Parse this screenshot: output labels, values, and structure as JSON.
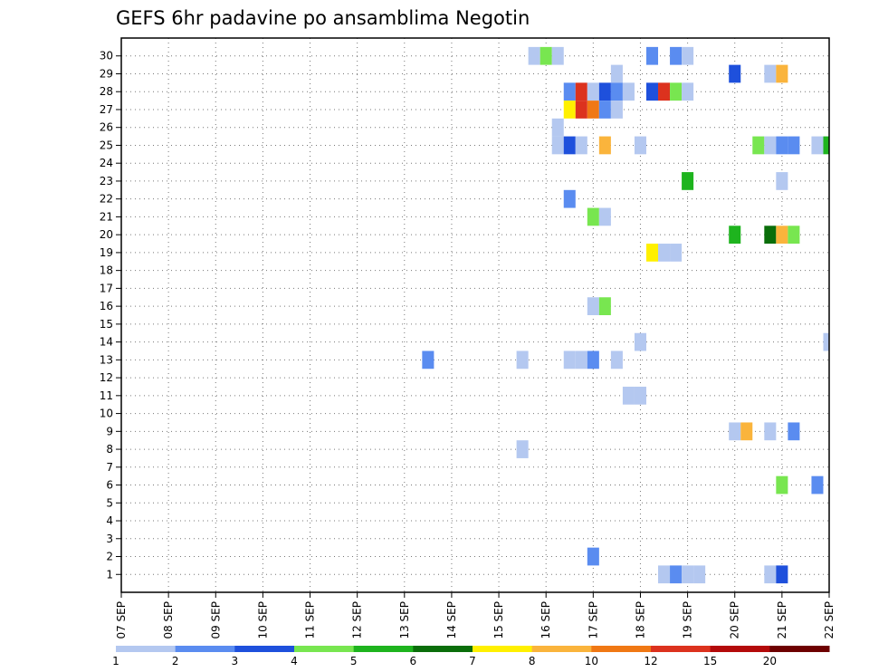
{
  "chart_data": {
    "type": "heatmap",
    "title": "GEFS 6hr padavine po ansamblima Negotin",
    "xlabel": "",
    "ylabel": "",
    "x_tick_labels": [
      "07 SEP",
      "08 SEP",
      "09 SEP",
      "10 SEP",
      "11 SEP",
      "12 SEP",
      "13 SEP",
      "14 SEP",
      "15 SEP",
      "16 SEP",
      "17 SEP",
      "18 SEP",
      "19 SEP",
      "20 SEP",
      "21 SEP",
      "22 SEP"
    ],
    "x_range_days": [
      0,
      15
    ],
    "y_tick_labels": [
      "1",
      "2",
      "3",
      "4",
      "5",
      "6",
      "7",
      "8",
      "9",
      "10",
      "11",
      "12",
      "13",
      "14",
      "15",
      "16",
      "17",
      "18",
      "19",
      "20",
      "21",
      "22",
      "23",
      "24",
      "25",
      "26",
      "27",
      "28",
      "29",
      "30"
    ],
    "y_range": [
      0,
      31
    ],
    "grid": true,
    "colorbar": {
      "labels": [
        "1",
        "2",
        "3",
        "4",
        "5",
        "6",
        "7",
        "8",
        "10",
        "12",
        "15",
        "20"
      ],
      "colors": [
        "#b4c8f0",
        "#5a8cf0",
        "#1e50dc",
        "#78e650",
        "#1eb41e",
        "#0a6e0a",
        "#fff000",
        "#fab43c",
        "#f07814",
        "#dc321e",
        "#b40a0a",
        "#6e0000"
      ]
    },
    "cells": [
      {
        "m": 30,
        "t": "2018-09-15 18",
        "c": 1
      },
      {
        "m": 30,
        "t": "2018-09-16 00",
        "c": 4
      },
      {
        "m": 30,
        "t": "2018-09-16 06",
        "c": 1
      },
      {
        "m": 30,
        "t": "2018-09-18 06",
        "c": 2
      },
      {
        "m": 30,
        "t": "2018-09-18 18",
        "c": 2
      },
      {
        "m": 30,
        "t": "2018-09-19 00",
        "c": 1
      },
      {
        "m": 29,
        "t": "2018-09-17 12",
        "c": 1
      },
      {
        "m": 29,
        "t": "2018-09-20 00",
        "c": 3
      },
      {
        "m": 29,
        "t": "2018-09-20 18",
        "c": 1
      },
      {
        "m": 29,
        "t": "2018-09-21 00",
        "c": 8
      },
      {
        "m": 28,
        "t": "2018-09-16 12",
        "c": 2
      },
      {
        "m": 28,
        "t": "2018-09-16 18",
        "c": 10
      },
      {
        "m": 28,
        "t": "2018-09-17 00",
        "c": 1
      },
      {
        "m": 28,
        "t": "2018-09-17 06",
        "c": 3
      },
      {
        "m": 28,
        "t": "2018-09-17 12",
        "c": 2
      },
      {
        "m": 28,
        "t": "2018-09-17 18",
        "c": 1
      },
      {
        "m": 28,
        "t": "2018-09-18 06",
        "c": 3
      },
      {
        "m": 28,
        "t": "2018-09-18 12",
        "c": 10
      },
      {
        "m": 28,
        "t": "2018-09-18 18",
        "c": 4
      },
      {
        "m": 28,
        "t": "2018-09-19 00",
        "c": 1
      },
      {
        "m": 27,
        "t": "2018-09-16 12",
        "c": 7
      },
      {
        "m": 27,
        "t": "2018-09-16 18",
        "c": 10
      },
      {
        "m": 27,
        "t": "2018-09-17 00",
        "c": 9
      },
      {
        "m": 27,
        "t": "2018-09-17 06",
        "c": 2
      },
      {
        "m": 27,
        "t": "2018-09-17 12",
        "c": 1
      },
      {
        "m": 26,
        "t": "2018-09-16 06",
        "c": 1
      },
      {
        "m": 25,
        "t": "2018-09-16 06",
        "c": 1
      },
      {
        "m": 25,
        "t": "2018-09-16 12",
        "c": 3
      },
      {
        "m": 25,
        "t": "2018-09-16 18",
        "c": 1
      },
      {
        "m": 25,
        "t": "2018-09-17 06",
        "c": 8
      },
      {
        "m": 25,
        "t": "2018-09-18 00",
        "c": 1
      },
      {
        "m": 25,
        "t": "2018-09-20 12",
        "c": 4
      },
      {
        "m": 25,
        "t": "2018-09-20 18",
        "c": 1
      },
      {
        "m": 25,
        "t": "2018-09-21 00",
        "c": 2
      },
      {
        "m": 25,
        "t": "2018-09-21 06",
        "c": 2
      },
      {
        "m": 25,
        "t": "2018-09-21 18",
        "c": 1
      },
      {
        "m": 25,
        "t": "2018-09-22 00",
        "c": 5
      },
      {
        "m": 23,
        "t": "2018-09-19 00",
        "c": 5
      },
      {
        "m": 23,
        "t": "2018-09-21 00",
        "c": 1
      },
      {
        "m": 22,
        "t": "2018-09-16 12",
        "c": 2
      },
      {
        "m": 21,
        "t": "2018-09-17 00",
        "c": 4
      },
      {
        "m": 21,
        "t": "2018-09-17 06",
        "c": 1
      },
      {
        "m": 20,
        "t": "2018-09-20 00",
        "c": 5
      },
      {
        "m": 20,
        "t": "2018-09-20 18",
        "c": 6
      },
      {
        "m": 20,
        "t": "2018-09-21 00",
        "c": 8
      },
      {
        "m": 20,
        "t": "2018-09-21 06",
        "c": 4
      },
      {
        "m": 19,
        "t": "2018-09-18 06",
        "c": 7
      },
      {
        "m": 19,
        "t": "2018-09-18 12",
        "c": 1
      },
      {
        "m": 19,
        "t": "2018-09-18 18",
        "c": 1
      },
      {
        "m": 16,
        "t": "2018-09-17 00",
        "c": 1
      },
      {
        "m": 16,
        "t": "2018-09-17 06",
        "c": 4
      },
      {
        "m": 14,
        "t": "2018-09-18 00",
        "c": 1
      },
      {
        "m": 14,
        "t": "2018-09-22 00",
        "c": 1
      },
      {
        "m": 13,
        "t": "2018-09-13 12",
        "c": 2
      },
      {
        "m": 13,
        "t": "2018-09-15 12",
        "c": 1
      },
      {
        "m": 13,
        "t": "2018-09-16 12",
        "c": 1
      },
      {
        "m": 13,
        "t": "2018-09-16 18",
        "c": 1
      },
      {
        "m": 13,
        "t": "2018-09-17 00",
        "c": 2
      },
      {
        "m": 13,
        "t": "2018-09-17 12",
        "c": 1
      },
      {
        "m": 11,
        "t": "2018-09-17 18",
        "c": 1
      },
      {
        "m": 11,
        "t": "2018-09-18 00",
        "c": 1
      },
      {
        "m": 9,
        "t": "2018-09-20 00",
        "c": 1
      },
      {
        "m": 9,
        "t": "2018-09-20 06",
        "c": 8
      },
      {
        "m": 9,
        "t": "2018-09-20 18",
        "c": 1
      },
      {
        "m": 9,
        "t": "2018-09-21 06",
        "c": 2
      },
      {
        "m": 8,
        "t": "2018-09-15 12",
        "c": 1
      },
      {
        "m": 6,
        "t": "2018-09-21 00",
        "c": 4
      },
      {
        "m": 6,
        "t": "2018-09-21 18",
        "c": 2
      },
      {
        "m": 2,
        "t": "2018-09-17 00",
        "c": 2
      },
      {
        "m": 1,
        "t": "2018-09-18 12",
        "c": 1
      },
      {
        "m": 1,
        "t": "2018-09-18 18",
        "c": 2
      },
      {
        "m": 1,
        "t": "2018-09-19 00",
        "c": 1
      },
      {
        "m": 1,
        "t": "2018-09-19 06",
        "c": 1
      },
      {
        "m": 1,
        "t": "2018-09-20 18",
        "c": 1
      },
      {
        "m": 1,
        "t": "2018-09-21 00",
        "c": 3
      }
    ]
  }
}
